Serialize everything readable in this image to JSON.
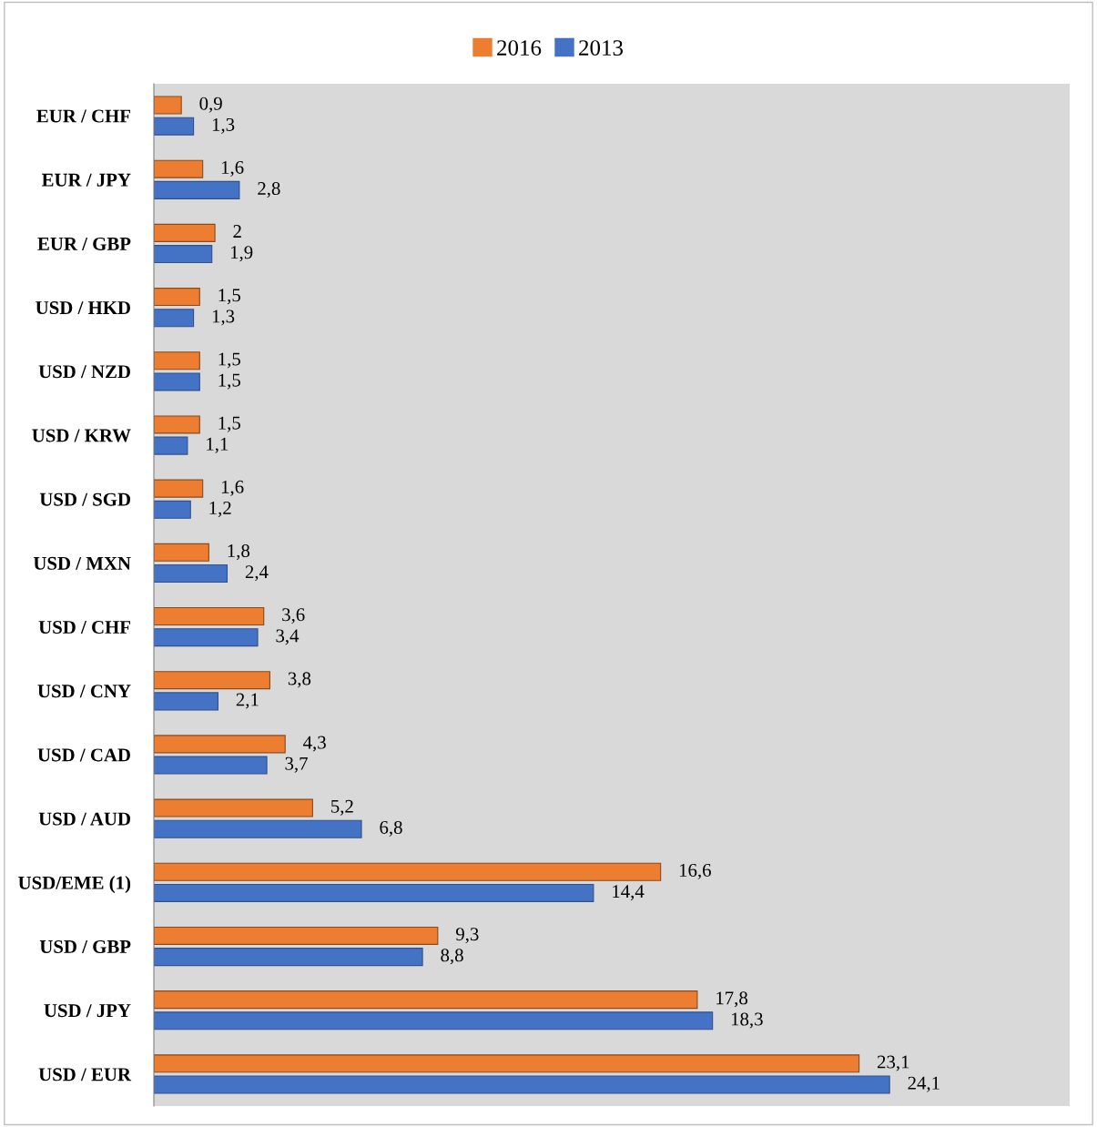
{
  "chart_data": {
    "type": "bar",
    "orientation": "horizontal",
    "categories": [
      "EUR / CHF",
      "EUR / JPY",
      "EUR / GBP",
      "USD / HKD",
      "USD / NZD",
      "USD / KRW",
      "USD / SGD",
      "USD / MXN",
      "USD / CHF",
      "USD / CNY",
      "USD / CAD",
      "USD / AUD",
      "USD/EME (1)",
      "USD / GBP",
      "USD / JPY",
      "USD / EUR"
    ],
    "series": [
      {
        "name": "2016",
        "color": "#ed7d31",
        "values": [
          0.9,
          1.6,
          2,
          1.5,
          1.5,
          1.5,
          1.6,
          1.8,
          3.6,
          3.8,
          4.3,
          5.2,
          16.6,
          9.3,
          17.8,
          23.1
        ],
        "value_labels": [
          "0,9",
          "1,6",
          "2",
          "1,5",
          "1,5",
          "1,5",
          "1,6",
          "1,8",
          "3,6",
          "3,8",
          "4,3",
          "5,2",
          "16,6",
          "9,3",
          "17,8",
          "23,1"
        ]
      },
      {
        "name": "2013",
        "color": "#4472c4",
        "values": [
          1.3,
          2.8,
          1.9,
          1.3,
          1.5,
          1.1,
          1.2,
          2.4,
          3.4,
          2.1,
          3.7,
          6.8,
          14.4,
          8.8,
          18.3,
          24.1
        ],
        "value_labels": [
          "1,3",
          "2,8",
          "1,9",
          "1,3",
          "1,5",
          "1,1",
          "1,2",
          "2,4",
          "3,4",
          "2,1",
          "3,7",
          "6,8",
          "14,4",
          "8,8",
          "18,3",
          "24,1"
        ]
      }
    ],
    "xlim": [
      0,
      30
    ],
    "tick_labels": "y",
    "grid": false,
    "legend": "top"
  }
}
